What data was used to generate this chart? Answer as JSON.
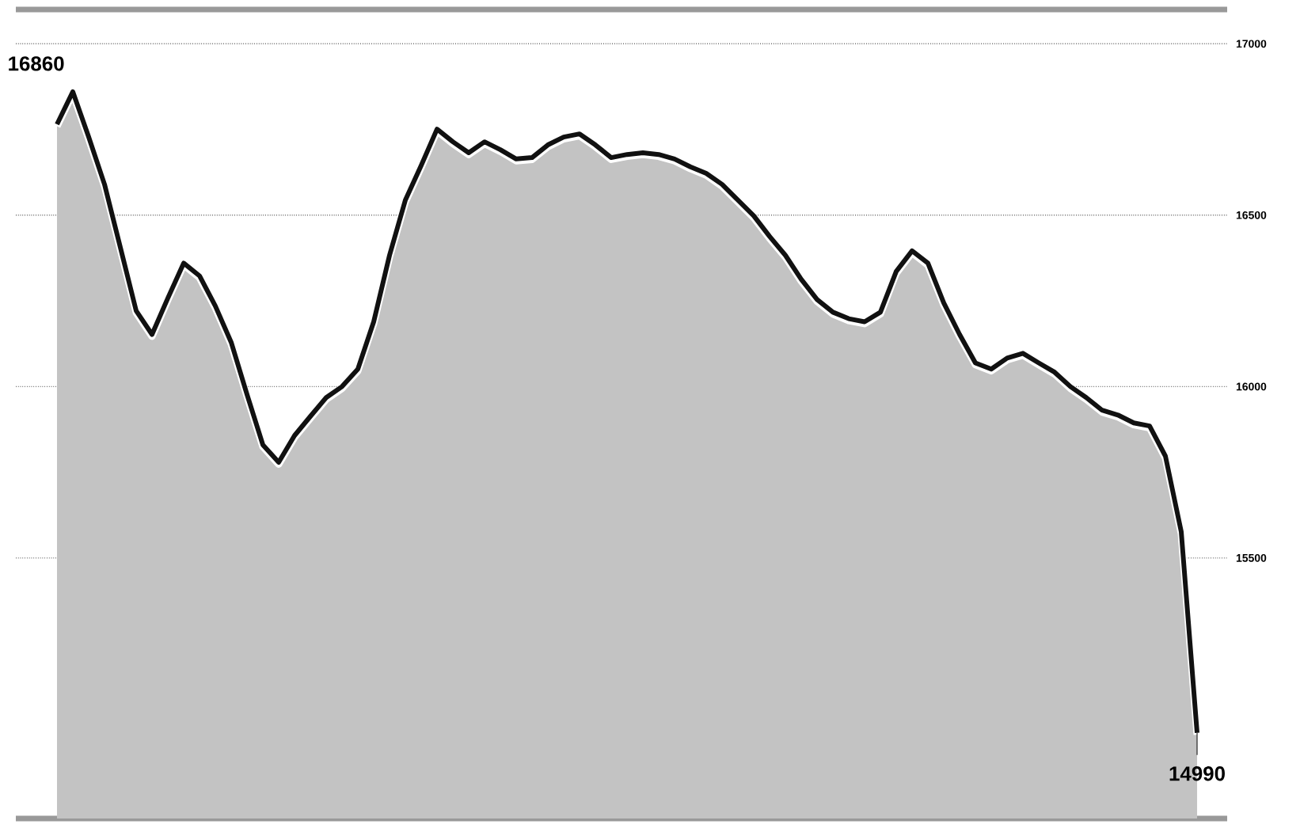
{
  "chart_data": {
    "type": "area",
    "categories": [
      null,
      null,
      null,
      null,
      null,
      null,
      null,
      null,
      null,
      null,
      null,
      null,
      null,
      null,
      null,
      null,
      null,
      null,
      null,
      null,
      null,
      null,
      null,
      null,
      null,
      null,
      null,
      null,
      null,
      null,
      null,
      null,
      null,
      null,
      null,
      null,
      null,
      null,
      null,
      null,
      null,
      null,
      null,
      null,
      null,
      null,
      null,
      null,
      null,
      null,
      null,
      null,
      null,
      null,
      null,
      null,
      null,
      null,
      null,
      null,
      null,
      null,
      null,
      null,
      null,
      null,
      null,
      null,
      null,
      null,
      null,
      null,
      null
    ],
    "series": [
      {
        "color": "#111111",
        "values": [
          16765,
          16860,
          16728,
          16590,
          16406,
          16221,
          16152,
          16258,
          16360,
          16323,
          16235,
          16129,
          15977,
          15830,
          15779,
          15857,
          15913,
          15968,
          16000,
          16051,
          16189,
          16383,
          16544,
          16645,
          16751,
          16714,
          16682,
          16714,
          16691,
          16664,
          16668,
          16705,
          16728,
          16737,
          16705,
          16668,
          16677,
          16682,
          16677,
          16664,
          16641,
          16622,
          16590,
          16544,
          16498,
          16438,
          16383,
          16313,
          16254,
          16217,
          16198,
          16189,
          16217,
          16336,
          16396,
          16360,
          16244,
          16152,
          16069,
          16051,
          16083,
          16097,
          16069,
          16042,
          16000,
          15968,
          15931,
          15917,
          15894,
          15885,
          15797,
          15576,
          14990
        ]
      }
    ],
    "ylim": [
      14740,
      17100
    ],
    "yticks": [
      15500,
      16000,
      16500,
      17000
    ],
    "grid": "y",
    "annotations": [
      "16860",
      "14990"
    ]
  }
}
